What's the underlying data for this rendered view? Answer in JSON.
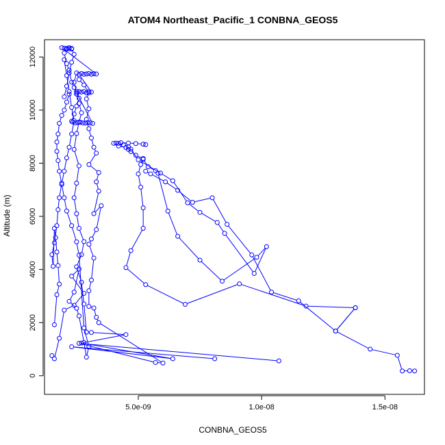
{
  "chart_data": {
    "type": "line",
    "title": "ATOM4 Northeast_Pacific_1 CONBNA_GEOS5",
    "xlabel": "CONBNA_GEOS5",
    "ylabel": "Altitude (m)",
    "xlim": [
      1.2e-09,
      1.66e-08
    ],
    "ylim": [
      -700,
      12650
    ],
    "x_ticks": [
      {
        "value": 5e-09,
        "label": "5.0e-09"
      },
      {
        "value": 1e-08,
        "label": "1.0e-08"
      },
      {
        "value": 1.5e-08,
        "label": "1.5e-08"
      }
    ],
    "y_ticks": [
      {
        "value": 0,
        "label": "0"
      },
      {
        "value": 2000,
        "label": "2000"
      },
      {
        "value": 4000,
        "label": "4000"
      },
      {
        "value": 6000,
        "label": "6000"
      },
      {
        "value": 8000,
        "label": "8000"
      },
      {
        "value": 10000,
        "label": "10000"
      },
      {
        "value": 12000,
        "label": "12000"
      }
    ],
    "grid": false,
    "legend": "none",
    "marker": "open-circle",
    "colors": {
      "series": "#0000ff",
      "axes": "#000000",
      "background": "#ffffff"
    },
    "series": [
      {
        "x": [
          1.62e-08,
          1.6e-08,
          1.57e-08,
          1.55e-08,
          1.44e-08,
          1.3e-08,
          1.38e-08,
          1.18e-08,
          9.1e-09,
          6.9e-09,
          5.3e-09,
          4.5e-09,
          4.7e-09,
          5.2e-09,
          5.2e-09,
          5.1e-09,
          5e-09,
          5.1e-09,
          5.2e-09,
          4.9e-09,
          4.7e-09,
          4.6e-09,
          4.5e-09,
          4.2e-09,
          4e-09,
          4.1e-09,
          4.3e-09,
          4.6e-09,
          4.9e-09,
          5.2e-09,
          5.3e-09
        ],
        "y": [
          180,
          190,
          180,
          770,
          1000,
          1680,
          2560,
          2620,
          3460,
          2690,
          3430,
          4070,
          4710,
          5550,
          6320,
          7100,
          7600,
          7950,
          8180,
          8300,
          8440,
          8520,
          8590,
          8650,
          8750,
          8760,
          8770,
          8760,
          8740,
          8720,
          8700
        ]
      },
      {
        "x": [
          5.2e-09,
          5.4e-09,
          5.7e-09,
          5.8e-09,
          6.2e-09,
          6.6e-09,
          7.5e-09,
          8.4e-09,
          9.8e-09,
          1.02e-08,
          9.7e-09,
          8.5e-09,
          8.2e-09,
          7.5e-09,
          7e-09,
          6.4e-09,
          5.9e-09,
          5e-09,
          4.7e-09,
          4.6e-09,
          4.4e-09,
          4.2e-09
        ],
        "y": [
          8150,
          7870,
          7720,
          7620,
          6200,
          5250,
          4350,
          3560,
          4460,
          4860,
          3850,
          5360,
          5770,
          6150,
          6510,
          7340,
          7630,
          8130,
          8530,
          8620,
          8690,
          8750
        ]
      },
      {
        "x": [
          1.38e-08,
          1.3e-08,
          1.15e-08,
          1.04e-08,
          9.6e-09,
          8.6e-09,
          8e-09,
          7.2e-09,
          6.6e-09,
          6.1e-09,
          5.5e-09,
          5.3e-09
        ],
        "y": [
          2560,
          1680,
          2820,
          3150,
          4550,
          5700,
          6700,
          6530,
          6980,
          7300,
          7600,
          7700
        ]
      },
      {
        "x": [
          1.07e-08,
          2.6e-09,
          5.7e-09,
          6e-09,
          3.4e-09,
          3.3e-09,
          3.2e-09,
          3e-09,
          3e-09,
          3.1e-09,
          3.2e-09,
          3e-09,
          3.1e-09,
          3.3e-09,
          3.5e-09,
          3.2e-09,
          3.4e-09,
          3.3e-09,
          3.4e-09,
          3e-09,
          3.3e-09,
          3.2e-09,
          3.1e-09,
          3e-09,
          2.9e-09,
          3e-09,
          2.9e-09,
          3e-09,
          2.8e-09,
          2.6e-09,
          2.5e-09,
          2.4e-09,
          2.5e-09,
          2.6e-09,
          2.5e-09,
          2.4e-09,
          2.3e-09
        ],
        "y": [
          560,
          1220,
          500,
          480,
          2000,
          2200,
          2550,
          2610,
          3200,
          3600,
          4430,
          4950,
          5150,
          5500,
          6400,
          6100,
          6950,
          7300,
          7650,
          7950,
          8380,
          8600,
          8950,
          9300,
          9650,
          10050,
          10420,
          10650,
          10950,
          11150,
          11400,
          11050,
          10700,
          10450,
          10150,
          9850,
          9580
        ]
      },
      {
        "x": [
          8.1e-09,
          2.3e-09,
          6.4e-09,
          2.7e-09,
          4.5e-09,
          3.1e-09,
          2.9e-09,
          2.8e-09,
          2.7e-09,
          2.5e-09,
          2.7e-09,
          2.8e-09,
          2.6e-09,
          2.5e-09,
          2.4e-09,
          2.5e-09,
          2.6e-09,
          2.4e-09,
          2.5e-09,
          2.6e-09,
          2.7e-09,
          2.6e-09,
          2.5e-09,
          2.4e-09,
          2.3e-09,
          2.2e-09,
          2.1e-09,
          2e-09,
          2.1e-09,
          2.2e-09,
          2.3e-09,
          2.4e-09,
          2.3e-09,
          2.2e-09,
          2.1e-09,
          2e-09
        ],
        "y": [
          640,
          1090,
          640,
          1230,
          1550,
          1630,
          1640,
          2700,
          3520,
          4100,
          4560,
          5050,
          5550,
          6100,
          6700,
          7250,
          7900,
          8520,
          9120,
          9550,
          9900,
          10250,
          10600,
          10850,
          11050,
          11500,
          11750,
          12150,
          12300,
          12350,
          12320,
          12100,
          11800,
          11400,
          10900,
          10500
        ]
      },
      {
        "x": [
          1.5e-09,
          1.6e-09,
          1.8e-09,
          2e-09,
          2.4e-09,
          2.8e-09,
          2.3e-09,
          2.6e-09,
          2.4e-09,
          2.2e-09,
          2.5e-09,
          2.6e-09,
          2.8e-09,
          2.9e-09,
          3e-09,
          2.8e-09,
          2.6e-09,
          2.5e-09,
          2.3e-09,
          2.1e-09,
          2e-09,
          1.9e-09,
          1.8e-09,
          1.75e-09,
          1.7e-09,
          1.7e-09,
          1.75e-09,
          1.8e-09,
          1.9e-09,
          2e-09,
          2.1e-09,
          2.2e-09
        ],
        "y": [
          760,
          640,
          1410,
          2470,
          2650,
          3100,
          3750,
          4020,
          3150,
          2800,
          2540,
          2250,
          1250,
          700,
          1100,
          1800,
          4540,
          5040,
          5650,
          6200,
          6700,
          7200,
          7700,
          8100,
          8450,
          8800,
          9100,
          9500,
          9800,
          10000,
          10300,
          10600
        ]
      },
      {
        "x": [
          1.6e-09,
          1.7e-09,
          1.8e-09,
          1.75e-09,
          1.7e-09,
          1.65e-09,
          1.6e-09,
          1.55e-09,
          1.5e-09,
          1.6e-09,
          1.7e-09,
          1.75e-09,
          1.8e-09,
          1.9e-09,
          2e-09,
          2.1e-09,
          2.2e-09,
          2.3e-09,
          2.4e-09,
          2.3e-09,
          2.2e-09,
          2.1e-09,
          2e-09
        ],
        "y": [
          1920,
          3050,
          3450,
          4150,
          4660,
          5200,
          5550,
          4120,
          4560,
          5000,
          5650,
          6250,
          6700,
          7250,
          7700,
          8200,
          8600,
          9100,
          9600,
          10100,
          10700,
          11300,
          11900
        ]
      },
      {
        "x": [
          2.35e-09,
          2.45e-09,
          2.55e-09,
          2.65e-09,
          2.75e-09,
          2.85e-09,
          2.95e-09,
          3.05e-09,
          3.15e-09,
          2.5e-09,
          2.6e-09,
          2.7e-09,
          2.8e-09,
          2.9e-09,
          3e-09,
          3.1e-09,
          2.6e-09,
          2.7e-09,
          2.8e-09,
          2.9e-09,
          3e-09,
          3.1e-09,
          3.2e-09,
          3.3e-09,
          1.9e-09,
          2e-09,
          2.1e-09,
          2.2e-09,
          2.3e-09
        ],
        "y": [
          9550,
          9520,
          9530,
          9540,
          9520,
          9510,
          9530,
          9520,
          9500,
          10650,
          10700,
          10680,
          10700,
          10650,
          10700,
          10680,
          11350,
          11380,
          11350,
          11360,
          11380,
          11350,
          11370,
          11360,
          12350,
          12330,
          12320,
          12310,
          12300
        ]
      }
    ]
  }
}
